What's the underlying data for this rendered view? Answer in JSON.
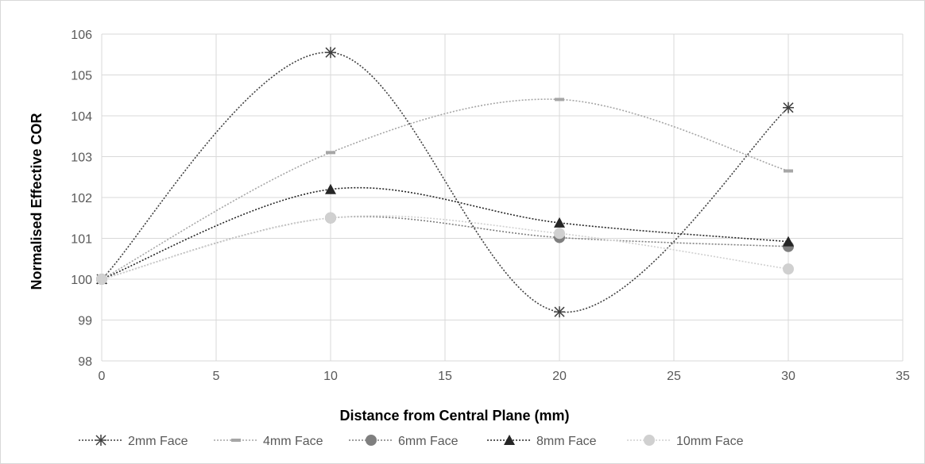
{
  "chart_data": {
    "type": "scatter",
    "title": "",
    "xlabel": "Distance from Central Plane (mm)",
    "ylabel": "Normalised Effective COR",
    "xlim": [
      0,
      35
    ],
    "ylim": [
      98,
      106
    ],
    "xticks": [
      0,
      5,
      10,
      15,
      20,
      25,
      30,
      35
    ],
    "yticks": [
      98,
      99,
      100,
      101,
      102,
      103,
      104,
      105,
      106
    ],
    "grid": true,
    "legend_position": "bottom",
    "smooth_lines": true,
    "line_style": "dotted",
    "series": [
      {
        "name": "2mm Face",
        "x": [
          0,
          10,
          20,
          30
        ],
        "y": [
          100,
          105.55,
          99.2,
          104.2
        ],
        "color": "#3f3f3f",
        "marker": "asterisk"
      },
      {
        "name": "4mm Face",
        "x": [
          0,
          10,
          20,
          30
        ],
        "y": [
          100,
          103.1,
          104.4,
          102.65
        ],
        "color": "#a6a6a6",
        "marker": "dash"
      },
      {
        "name": "6mm Face",
        "x": [
          0,
          10,
          20,
          30
        ],
        "y": [
          100,
          101.5,
          101.02,
          100.8
        ],
        "color": "#7f7f7f",
        "marker": "circle"
      },
      {
        "name": "8mm Face",
        "x": [
          0,
          10,
          20,
          30
        ],
        "y": [
          100,
          102.2,
          101.38,
          100.92
        ],
        "color": "#262626",
        "marker": "triangle"
      },
      {
        "name": "10mm Face",
        "x": [
          0,
          10,
          20,
          30
        ],
        "y": [
          100,
          101.5,
          101.12,
          100.25
        ],
        "color": "#d0d0d0",
        "marker": "circle"
      }
    ]
  }
}
